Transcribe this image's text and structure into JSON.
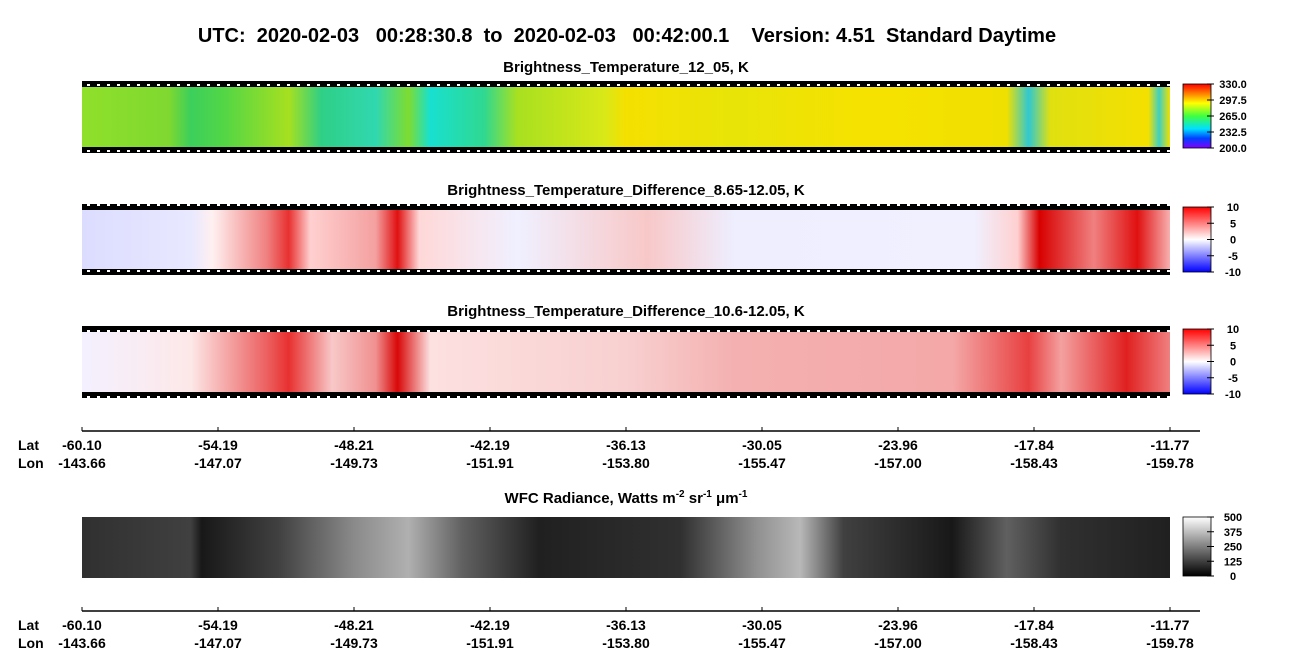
{
  "title": "UTC:  2020-02-03   00:28:30.8  to  2020-02-03   00:42:00.1    Version: 4.51  Standard Daytime",
  "chart_data": [
    {
      "type": "image",
      "title": "Brightness_Temperature_12_05, K",
      "colormap": "rainbow",
      "clim": [
        200,
        330
      ],
      "cticks": [
        {
          "value": 330,
          "label": "330.0"
        },
        {
          "value": 297.5,
          "label": "297.5"
        },
        {
          "value": 265,
          "label": "265.0"
        },
        {
          "value": 232.5,
          "label": "232.5"
        },
        {
          "value": 200,
          "label": "200.0"
        }
      ]
    },
    {
      "type": "image",
      "title": "Brightness_Temperature_Difference_8.65-12.05, K",
      "colormap": "bwr",
      "clim": [
        -10,
        10
      ],
      "cticks": [
        10,
        5,
        0,
        -5,
        -10
      ]
    },
    {
      "type": "image",
      "title": "Brightness_Temperature_Difference_10.6-12.05, K",
      "colormap": "bwr",
      "clim": [
        -10,
        10
      ],
      "cticks": [
        10,
        5,
        0,
        -5,
        -10
      ]
    },
    {
      "type": "image",
      "title_parts": [
        "WFC Radiance, Watts m",
        "-2",
        " sr",
        "-1",
        " μm",
        "-1"
      ],
      "colormap": "gray",
      "clim": [
        0,
        500
      ],
      "cticks": [
        500,
        375,
        250,
        125,
        0
      ]
    }
  ],
  "x_axes": [
    {
      "lat_label": "Lat",
      "lon_label": "Lon",
      "lat": [
        "-60.10",
        "-54.19",
        "-48.21",
        "-42.19",
        "-36.13",
        "-30.05",
        "-23.96",
        "-17.84",
        "-11.77"
      ],
      "lon": [
        "-143.66",
        "-147.07",
        "-149.73",
        "-151.91",
        "-153.80",
        "-155.47",
        "-157.00",
        "-158.43",
        "-159.78"
      ]
    },
    {
      "lat_label": "Lat",
      "lon_label": "Lon",
      "lat": [
        "-60.10",
        "-54.19",
        "-48.21",
        "-42.19",
        "-36.13",
        "-30.05",
        "-23.96",
        "-17.84",
        "-11.77"
      ],
      "lon": [
        "-143.66",
        "-147.07",
        "-149.73",
        "-151.91",
        "-153.80",
        "-155.47",
        "-157.00",
        "-158.43",
        "-159.78"
      ]
    }
  ]
}
